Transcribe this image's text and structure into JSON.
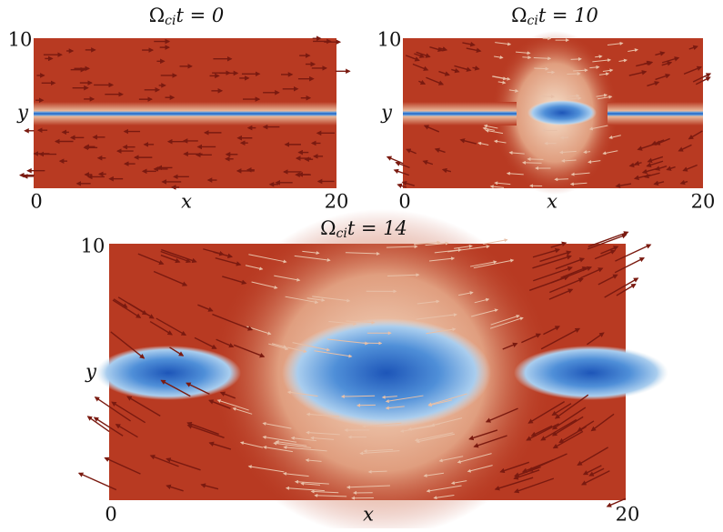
{
  "panels": [
    {
      "title": {
        "symbol": "Ω",
        "subscript": "ci",
        "rest": "t = 0"
      },
      "xlabel": "x",
      "ylabel": "y",
      "xticks": [
        "0",
        "20"
      ],
      "yticks": [
        "10"
      ]
    },
    {
      "title": {
        "symbol": "Ω",
        "subscript": "ci",
        "rest": "t = 10"
      },
      "xlabel": "x",
      "ylabel": "y",
      "xticks": [
        "0",
        "20"
      ],
      "yticks": [
        "10"
      ]
    },
    {
      "title": {
        "symbol": "Ω",
        "subscript": "ci",
        "rest": "t = 14"
      },
      "xlabel": "x",
      "ylabel": "y",
      "xticks": [
        "0",
        "20"
      ],
      "yticks": [
        "10"
      ]
    }
  ]
}
